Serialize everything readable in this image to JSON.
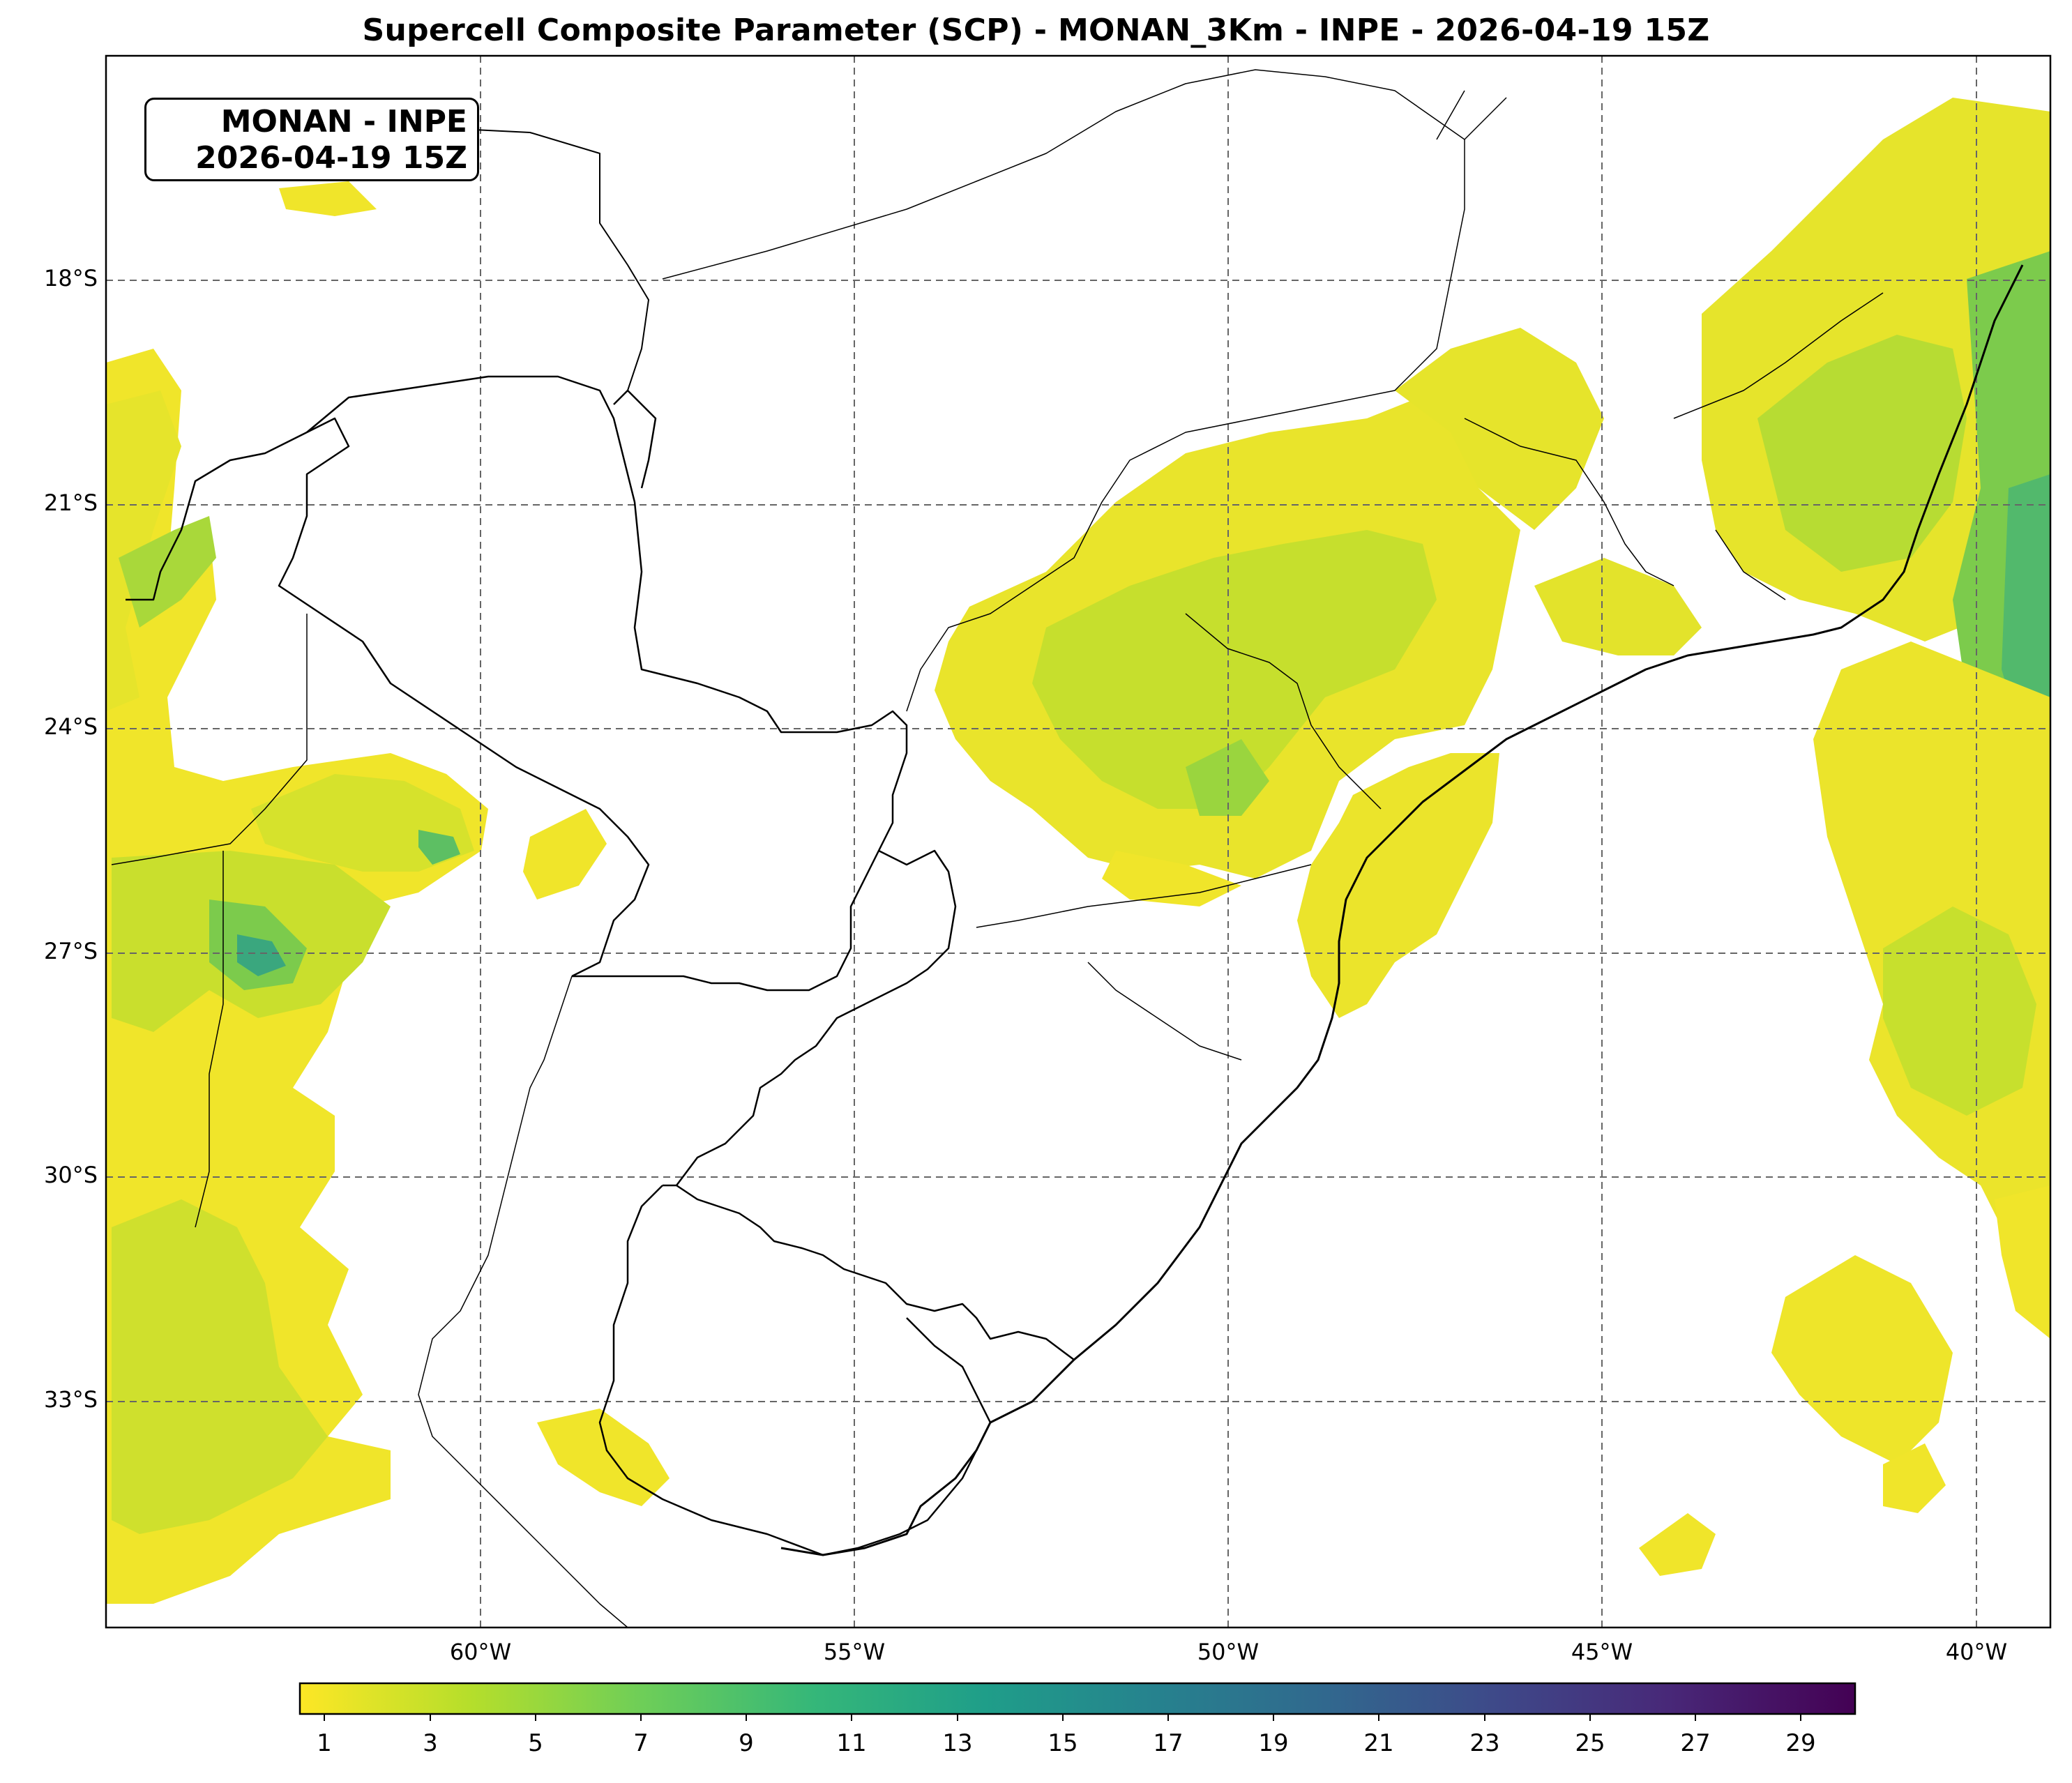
{
  "title": "Supercell Composite Parameter (SCP) - MONAN_3Km - INPE - 2026-04-19 15Z",
  "info_box": {
    "line1": "MONAN - INPE",
    "line2": "2026-04-19 15Z"
  },
  "axes": {
    "lat_labels": [
      "18°S",
      "21°S",
      "24°S",
      "27°S",
      "30°S",
      "33°S"
    ],
    "lon_labels": [
      "60°W",
      "55°W",
      "50°W",
      "45°W",
      "40°W"
    ],
    "gridlines": "dashed"
  },
  "colorbar": {
    "colormap": "viridis_r",
    "min": 0.5,
    "max": 30,
    "ticks": [
      "1",
      "3",
      "5",
      "7",
      "9",
      "11",
      "13",
      "15",
      "17",
      "19",
      "21",
      "23",
      "25",
      "27",
      "29"
    ],
    "colors": [
      "#fde725",
      "#b5de2b",
      "#6ece58",
      "#35b779",
      "#1f9e89",
      "#26828e",
      "#31688e",
      "#3e4989",
      "#482878",
      "#440154"
    ]
  },
  "field_colors": {
    "low": "#f4e62a",
    "mid": "#c5df2c",
    "high": "#8fd143",
    "peak": "#4fbf70",
    "max": "#2f9c8a"
  }
}
